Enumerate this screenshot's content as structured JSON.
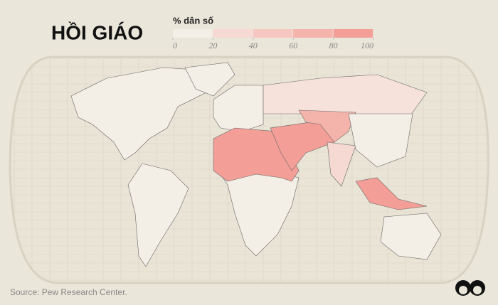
{
  "header": {
    "title": "HỒI GIÁO"
  },
  "legend": {
    "label": "% dân số",
    "ticks": [
      0,
      20,
      40,
      60,
      80,
      100
    ],
    "colors": [
      "#f3efe7",
      "#f6d9d3",
      "#f5c7c0",
      "#f4b3ab",
      "#f39e96"
    ]
  },
  "source": "Source: Pew Research Center."
}
